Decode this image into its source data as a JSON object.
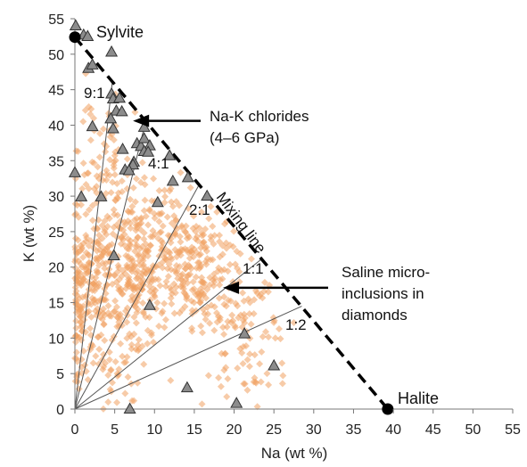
{
  "chart_data": {
    "type": "scatter",
    "xlabel": "Na (wt %)",
    "ylabel": "K (wt %)",
    "xlim": [
      0,
      55
    ],
    "ylim": [
      0,
      55
    ],
    "xticks": [
      "0",
      "5",
      "10",
      "15",
      "20",
      "25",
      "30",
      "35",
      "40",
      "45",
      "50",
      "55"
    ],
    "yticks": [
      "0",
      "5",
      "10",
      "15",
      "20",
      "25",
      "30",
      "35",
      "40",
      "45",
      "50",
      "55"
    ],
    "grid": false,
    "colors": {
      "micro_inclusions": "#f0a060",
      "chlorides": "#8c8c8c",
      "endmembers": "#000000",
      "lines": "#555555"
    },
    "endmembers": [
      {
        "label": "Sylvite",
        "x": 0,
        "y": 52.4
      },
      {
        "label": "Halite",
        "x": 39.3,
        "y": 0
      }
    ],
    "mixing_line": {
      "label": "Mixing line",
      "from": [
        0,
        52.4
      ],
      "to": [
        39.3,
        0
      ]
    },
    "ratio_lines": [
      {
        "label": "9:1",
        "end": [
          4.7,
          46.1
        ]
      },
      {
        "label": "4:1",
        "end": [
          8.9,
          40.6
        ]
      },
      {
        "label": "2:1",
        "end": [
          15.6,
          31.6
        ]
      },
      {
        "label": "1:1",
        "end": [
          23.4,
          21.1
        ]
      },
      {
        "label": "1:2",
        "end": [
          28.5,
          14.5
        ]
      }
    ],
    "annotations": [
      {
        "text_lines": [
          "Na-K chlorides",
          "(4–6 GPa)"
        ],
        "arrow_to": [
          7.3,
          40.6
        ]
      },
      {
        "text_lines": [
          "Saline micro-",
          "inclusions in",
          "diamonds"
        ],
        "arrow_to": [
          18.6,
          17.1
        ]
      }
    ],
    "series": [
      {
        "name": "Na-K chlorides (4–6 GPa)",
        "marker": "triangle",
        "points": [
          [
            0.1,
            54
          ],
          [
            1.1,
            52.7
          ],
          [
            1.6,
            52.5
          ],
          [
            4.6,
            50.3
          ],
          [
            1.7,
            48
          ],
          [
            2.2,
            48.5
          ],
          [
            4.6,
            44.4
          ],
          [
            4.8,
            43.7
          ],
          [
            5.6,
            43.8
          ],
          [
            5.2,
            42
          ],
          [
            5.9,
            41.9
          ],
          [
            4.5,
            40.9
          ],
          [
            2.2,
            39.8
          ],
          [
            4.8,
            39.5
          ],
          [
            8.7,
            39.7
          ],
          [
            7.8,
            37.4
          ],
          [
            8.3,
            37
          ],
          [
            8.7,
            38.1
          ],
          [
            9.4,
            37.1
          ],
          [
            6,
            36.6
          ],
          [
            8.7,
            36.3
          ],
          [
            9.2,
            36.2
          ],
          [
            11.9,
            35.7
          ],
          [
            7.4,
            34.8
          ],
          [
            7.3,
            34.4
          ],
          [
            6.3,
            33.7
          ],
          [
            6.8,
            33.6
          ],
          [
            0,
            33.3
          ],
          [
            12.3,
            32.1
          ],
          [
            14.2,
            32.6
          ],
          [
            3.3,
            29.9
          ],
          [
            0.8,
            29.9
          ],
          [
            10.4,
            29.1
          ],
          [
            16.6,
            30
          ],
          [
            4.9,
            21.6
          ],
          [
            9.4,
            14.6
          ],
          [
            14.1,
            3
          ],
          [
            21.3,
            10.6
          ],
          [
            25,
            6.1
          ],
          [
            6.9,
            0
          ],
          [
            20.3,
            0.8
          ]
        ]
      },
      {
        "name": "Saline micro-inclusions in diamonds",
        "marker": "diamond",
        "generator": {
          "clusters": [
            {
              "cx": 6,
              "cy": 21,
              "sx": 3.2,
              "sy": 6.5,
              "n": 340
            },
            {
              "cx": 14,
              "cy": 21,
              "sx": 4,
              "sy": 4.5,
              "n": 280
            },
            {
              "cx": 1,
              "cy": 16,
              "sx": 1.3,
              "sy": 5,
              "n": 120
            },
            {
              "cx": 4,
              "cy": 36,
              "sx": 2.2,
              "sy": 4,
              "n": 60
            },
            {
              "cx": 21,
              "cy": 13,
              "sx": 3,
              "sy": 3.5,
              "n": 80
            },
            {
              "cx": 4,
              "cy": 7,
              "sx": 3,
              "sy": 3.5,
              "n": 60
            },
            {
              "cx": 22,
              "cy": 5,
              "sx": 2.5,
              "sy": 2.5,
              "n": 22
            }
          ],
          "seed": 12345
        }
      }
    ]
  }
}
